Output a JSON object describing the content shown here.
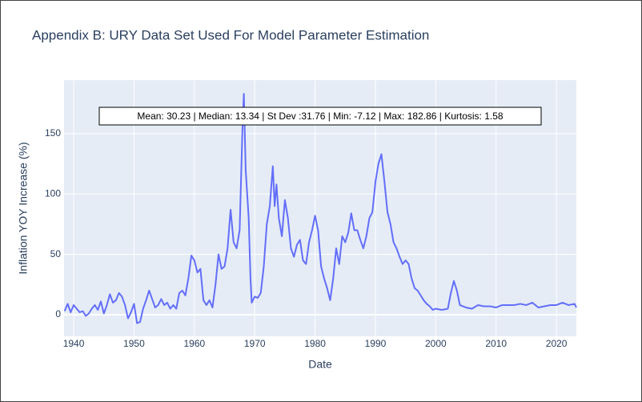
{
  "chart_data": {
    "type": "line",
    "title": "Appendix B: URY Data Set Used For Model Parameter Estimation",
    "xlabel": "Date",
    "ylabel": "Inflation YOY Increase (%)",
    "annotation": "Mean: 30.23 | Median: 13.34 | St Dev :31.76 | Min: -7.12 | Max: 182.86 | Kurtosis: 1.58",
    "x": [
      1938.5,
      1939,
      1939.5,
      1940,
      1940.5,
      1941,
      1941.5,
      1942,
      1942.5,
      1943,
      1943.5,
      1944,
      1944.5,
      1945,
      1945.5,
      1946,
      1946.5,
      1947,
      1947.5,
      1948,
      1948.5,
      1949,
      1949.5,
      1950,
      1950.5,
      1951,
      1951.5,
      1952,
      1952.5,
      1953,
      1953.5,
      1954,
      1954.5,
      1955,
      1955.5,
      1956,
      1956.5,
      1957,
      1957.5,
      1958,
      1958.5,
      1959,
      1959.5,
      1960,
      1960.5,
      1961,
      1961.5,
      1962,
      1962.5,
      1963,
      1963.5,
      1964,
      1964.5,
      1965,
      1965.5,
      1966,
      1966.5,
      1967,
      1967.5,
      1968,
      1968.2,
      1968.5,
      1969,
      1969.3,
      1969.5,
      1970,
      1970.5,
      1971,
      1971.5,
      1972,
      1972.5,
      1973,
      1973.3,
      1973.6,
      1974,
      1974.5,
      1975,
      1975.5,
      1976,
      1976.5,
      1977,
      1977.5,
      1978,
      1978.5,
      1979,
      1979.5,
      1980,
      1980.5,
      1981,
      1981.5,
      1982,
      1982.5,
      1983,
      1983.5,
      1984,
      1984.5,
      1985,
      1985.5,
      1986,
      1986.5,
      1987,
      1987.5,
      1988,
      1988.5,
      1989,
      1989.5,
      1990,
      1990.5,
      1991,
      1991.5,
      1992,
      1992.5,
      1993,
      1993.5,
      1994,
      1994.5,
      1995,
      1995.5,
      1996,
      1996.5,
      1997,
      1997.5,
      1998,
      1998.5,
      1999,
      1999.5,
      2000,
      2001,
      2002,
      2002.5,
      2003,
      2003.5,
      2004,
      2005,
      2006,
      2007,
      2008,
      2009,
      2010,
      2011,
      2012,
      2013,
      2014,
      2015,
      2016,
      2017,
      2018,
      2019,
      2020,
      2021,
      2022,
      2023,
      2023.3
    ],
    "series": [
      {
        "name": "Inflation",
        "color": "#636efa",
        "values": [
          3,
          9,
          2,
          8,
          5,
          2,
          3,
          -1,
          1,
          5,
          8,
          4,
          11,
          1,
          8,
          17,
          10,
          12,
          18,
          15,
          8,
          -3,
          2,
          9,
          -7,
          -6,
          5,
          12,
          20,
          13,
          6,
          8,
          13,
          8,
          10,
          5,
          8,
          5,
          18,
          20,
          16,
          30,
          49,
          45,
          35,
          38,
          12,
          8,
          12,
          6,
          25,
          50,
          38,
          40,
          55,
          87,
          60,
          55,
          70,
          160,
          183,
          120,
          80,
          30,
          10,
          15,
          14,
          18,
          40,
          75,
          90,
          123,
          90,
          108,
          80,
          65,
          95,
          80,
          55,
          48,
          58,
          62,
          45,
          42,
          60,
          70,
          82,
          70,
          40,
          30,
          22,
          12,
          30,
          55,
          42,
          65,
          60,
          68,
          84,
          70,
          70,
          62,
          55,
          65,
          80,
          85,
          110,
          125,
          133,
          110,
          85,
          75,
          60,
          55,
          48,
          42,
          45,
          42,
          30,
          22,
          20,
          16,
          12,
          9,
          7,
          4,
          5,
          4,
          5,
          18,
          28,
          20,
          8,
          6,
          5,
          8,
          7,
          7,
          6,
          8,
          8,
          8,
          9,
          8,
          10,
          6,
          7,
          8,
          8,
          10,
          8,
          9,
          6
        ]
      }
    ],
    "xlim": [
      1938.4,
      2023.3
    ],
    "xticks": [
      1940,
      1950,
      1960,
      1970,
      1980,
      1990,
      2000,
      2010,
      2020
    ],
    "ylim": [
      -17.9,
      194.4
    ],
    "yticks": [
      0,
      50,
      100,
      150
    ],
    "grid": true
  }
}
